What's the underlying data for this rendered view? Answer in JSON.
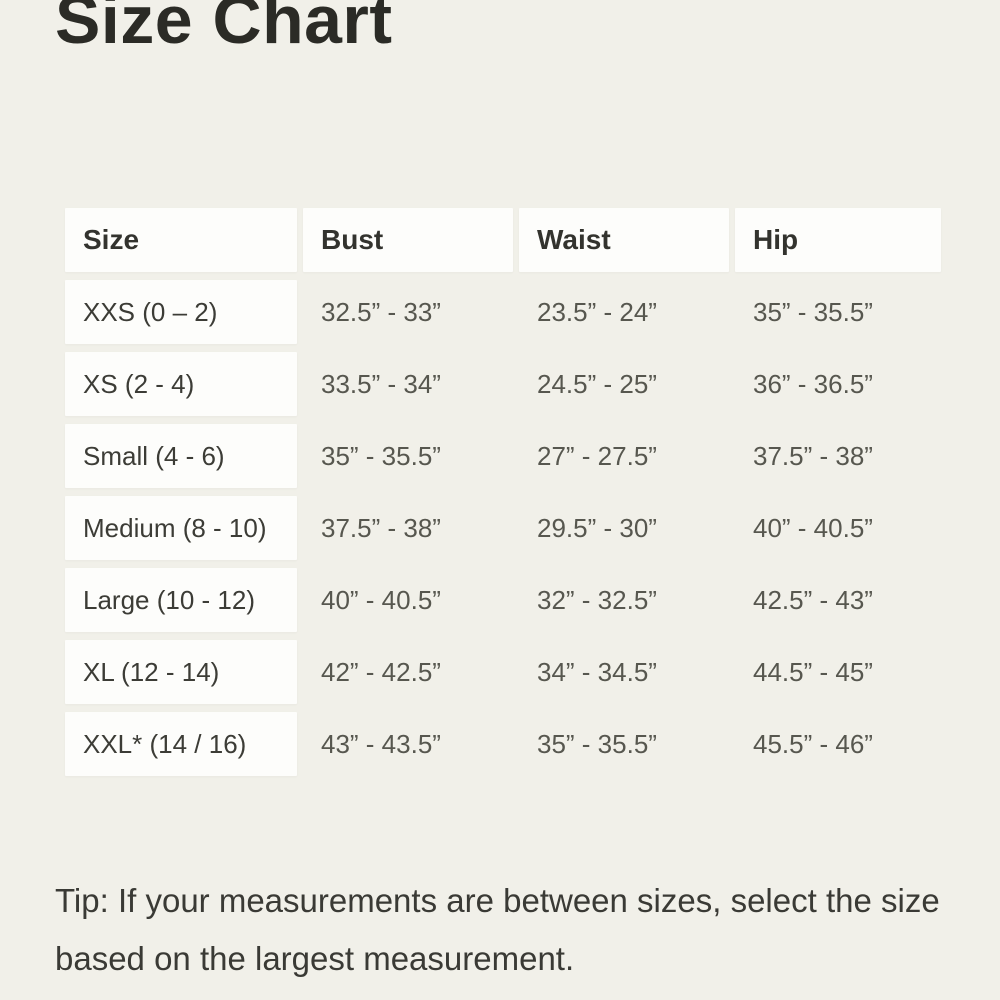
{
  "page": {
    "title": "Size Chart",
    "tip": "Tip: If your measurements are between sizes, select the size based on the largest measurement."
  },
  "colors": {
    "page_background": "#F1F0E9",
    "cell_background": "#FDFDFB",
    "title_text": "#2B2B26",
    "header_text": "#33332E",
    "value_text": "#57574F"
  },
  "table": {
    "headers": [
      "Size",
      "Bust",
      "Waist",
      "Hip"
    ],
    "rows": [
      {
        "size": "XXS (0 – 2)",
        "bust": "32.5” - 33”",
        "waist": "23.5” - 24”",
        "hip": "35” - 35.5”"
      },
      {
        "size": "XS (2 - 4)",
        "bust": "33.5” - 34”",
        "waist": "24.5” - 25”",
        "hip": "36” - 36.5”"
      },
      {
        "size": "Small (4 - 6)",
        "bust": "35” - 35.5”",
        "waist": "27” - 27.5”",
        "hip": "37.5” - 38”"
      },
      {
        "size": "Medium (8 - 10)",
        "bust": "37.5” - 38”",
        "waist": "29.5” - 30”",
        "hip": "40” - 40.5”"
      },
      {
        "size": "Large (10 - 12)",
        "bust": "40” - 40.5”",
        "waist": "32” - 32.5”",
        "hip": "42.5” - 43”"
      },
      {
        "size": "XL (12 - 14)",
        "bust": "42” - 42.5”",
        "waist": "34” - 34.5”",
        "hip": "44.5” - 45”"
      },
      {
        "size": "XXL* (14 / 16)",
        "bust": "43” - 43.5”",
        "waist": "35” - 35.5”",
        "hip": "45.5” - 46”"
      }
    ]
  }
}
